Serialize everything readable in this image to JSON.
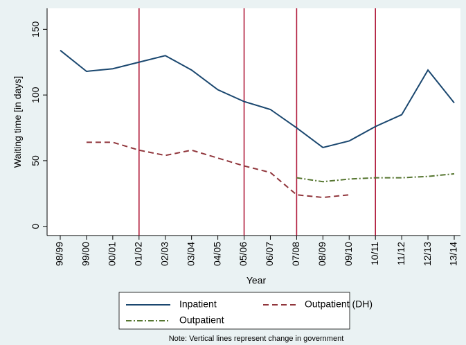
{
  "chart_data": {
    "type": "line",
    "x_label": "Year",
    "y_label": "Waiting time [in days]",
    "categories": [
      "98/99",
      "99/00",
      "00/01",
      "01/02",
      "02/03",
      "03/04",
      "04/05",
      "05/06",
      "06/07",
      "07/08",
      "08/09",
      "09/10",
      "10/11",
      "11/12",
      "12/13",
      "13/14"
    ],
    "series": [
      {
        "name": "Inpatient",
        "color": "#1a476f",
        "dash": "solid",
        "values": [
          134,
          118,
          120,
          125,
          130,
          119,
          104,
          95,
          89,
          75,
          60,
          65,
          76,
          85,
          119,
          94
        ]
      },
      {
        "name": "Outpatient (DH)",
        "color": "#90353b",
        "dash": "dash",
        "values": [
          null,
          64,
          64,
          58,
          54,
          58,
          52,
          46,
          41,
          24,
          22,
          24,
          null,
          null,
          null,
          null
        ]
      },
      {
        "name": "Outpatient",
        "color": "#55752f",
        "dash": "dashdot",
        "values": [
          null,
          null,
          null,
          null,
          null,
          null,
          null,
          null,
          null,
          37,
          34,
          36,
          37,
          37,
          38,
          40
        ]
      }
    ],
    "vertical_lines": [
      "01/02",
      "05/06",
      "07/08",
      "10/11"
    ],
    "vertical_line_color": "#b01a3a",
    "ylim": [
      -7,
      166
    ],
    "yticks": [
      0,
      50,
      100,
      150
    ],
    "grid": false,
    "note": "Note: Vertical lines represent change in government"
  }
}
